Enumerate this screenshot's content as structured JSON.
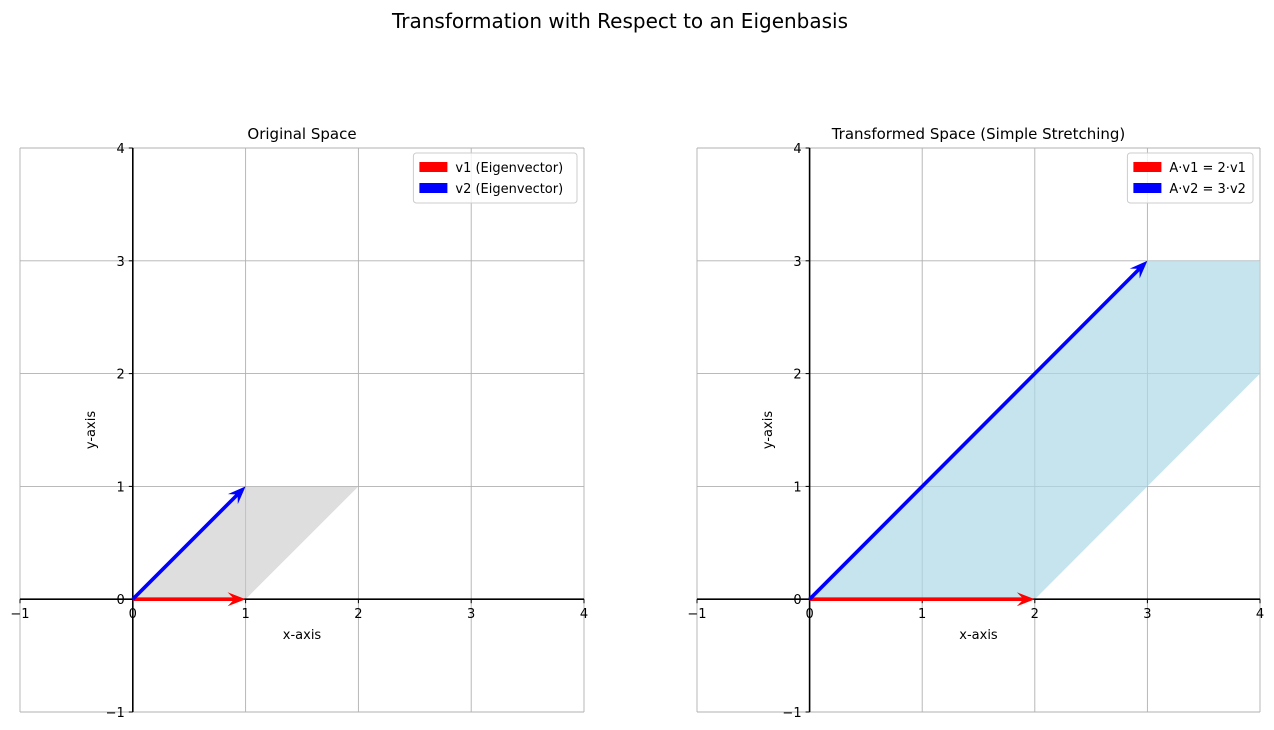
{
  "figure": {
    "suptitle": "Transformation with Respect to an Eigenbasis"
  },
  "chart_data": [
    {
      "type": "vector",
      "title": "Original Space",
      "xlabel": "x-axis",
      "ylabel": "y-axis",
      "xlim": [
        -1,
        4
      ],
      "ylim": [
        -1,
        4
      ],
      "xticks": [
        -1,
        0,
        1,
        2,
        3,
        4
      ],
      "yticks": [
        -1,
        0,
        1,
        2,
        3,
        4
      ],
      "tick_labels": [
        "−1",
        "0",
        "1",
        "2",
        "3",
        "4"
      ],
      "grid": true,
      "legend_position": "top-right",
      "polygon": {
        "points": [
          [
            0,
            0
          ],
          [
            1,
            0
          ],
          [
            2,
            1
          ],
          [
            1,
            1
          ]
        ],
        "color": "#c8c8c8",
        "alpha": 0.6
      },
      "vectors": [
        {
          "name": "v1 (Eigenvector)",
          "from": [
            0,
            0
          ],
          "to": [
            1,
            0
          ],
          "color": "#ff0000"
        },
        {
          "name": "v2 (Eigenvector)",
          "from": [
            0,
            0
          ],
          "to": [
            1,
            1
          ],
          "color": "#0000ff"
        }
      ]
    },
    {
      "type": "vector",
      "title": "Transformed Space (Simple Stretching)",
      "xlabel": "x-axis",
      "ylabel": "y-axis",
      "xlim": [
        -1,
        4
      ],
      "ylim": [
        -1,
        4
      ],
      "xticks": [
        -1,
        0,
        1,
        2,
        3,
        4
      ],
      "yticks": [
        -1,
        0,
        1,
        2,
        3,
        4
      ],
      "tick_labels": [
        "−1",
        "0",
        "1",
        "2",
        "3",
        "4"
      ],
      "grid": true,
      "legend_position": "top-right",
      "polygon": {
        "points": [
          [
            0,
            0
          ],
          [
            2,
            0
          ],
          [
            5,
            3
          ],
          [
            3,
            3
          ]
        ],
        "color": "#add8e6",
        "alpha": 0.7
      },
      "vectors": [
        {
          "name": "A·v1 = 2·v1",
          "from": [
            0,
            0
          ],
          "to": [
            2,
            0
          ],
          "color": "#ff0000"
        },
        {
          "name": "A·v2 = 3·v2",
          "from": [
            0,
            0
          ],
          "to": [
            3,
            3
          ],
          "color": "#0000ff"
        }
      ]
    }
  ]
}
